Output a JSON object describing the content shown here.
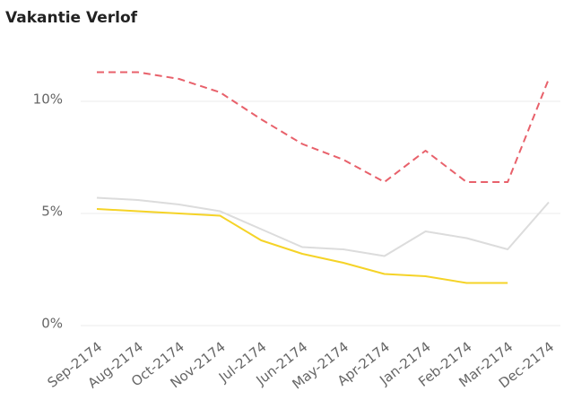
{
  "chart_data": {
    "type": "line",
    "title": "Vakantie Verlof",
    "categories": [
      "Sep-2174",
      "Aug-2174",
      "Oct-2174",
      "Nov-2174",
      "Jul-2174",
      "Jun-2174",
      "May-2174",
      "Apr-2174",
      "Jan-2174",
      "Feb-2174",
      "Mar-2174",
      "Dec-2174"
    ],
    "series": [
      {
        "color": "#e8616b",
        "dash": true,
        "values": [
          11.3,
          11.3,
          11.0,
          10.4,
          9.2,
          8.1,
          7.4,
          6.4,
          7.8,
          6.4,
          6.4,
          11.0
        ]
      },
      {
        "color": "#dcdcdc",
        "dash": false,
        "values": [
          5.7,
          5.6,
          5.4,
          5.1,
          4.3,
          3.5,
          3.4,
          3.1,
          4.2,
          3.9,
          3.4,
          5.5
        ]
      },
      {
        "color": "#f5d327",
        "dash": false,
        "values": [
          5.2,
          5.1,
          5.0,
          4.9,
          3.8,
          3.2,
          2.8,
          2.3,
          2.2,
          1.9,
          1.9,
          null
        ]
      }
    ],
    "ylim": [
      0,
      12
    ],
    "yticks": [
      {
        "value": 0,
        "label": "0%"
      },
      {
        "value": 5,
        "label": "5%"
      },
      {
        "value": 10,
        "label": "10%"
      }
    ],
    "grid": true
  }
}
